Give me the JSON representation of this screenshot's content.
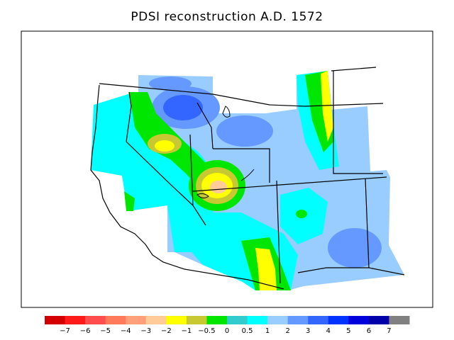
{
  "title": "PDSI reconstruction A.D. 1572",
  "legend": {
    "colors": [
      "#d40000",
      "#ff1a1a",
      "#ff4d4d",
      "#ff7a5a",
      "#ffa07a",
      "#ffcc99",
      "#ffff00",
      "#c8c832",
      "#00e600",
      "#33cccc",
      "#00ffff",
      "#99ccff",
      "#6699ff",
      "#3366ff",
      "#0033ff",
      "#0000dd",
      "#0000aa",
      "#808080"
    ],
    "labels": [
      "−7",
      "−6",
      "−5",
      "−4",
      "−3",
      "−2",
      "−1",
      "−0.5",
      "0",
      "0.5",
      "1",
      "2",
      "3",
      "4",
      "5",
      "6",
      "7"
    ]
  }
}
